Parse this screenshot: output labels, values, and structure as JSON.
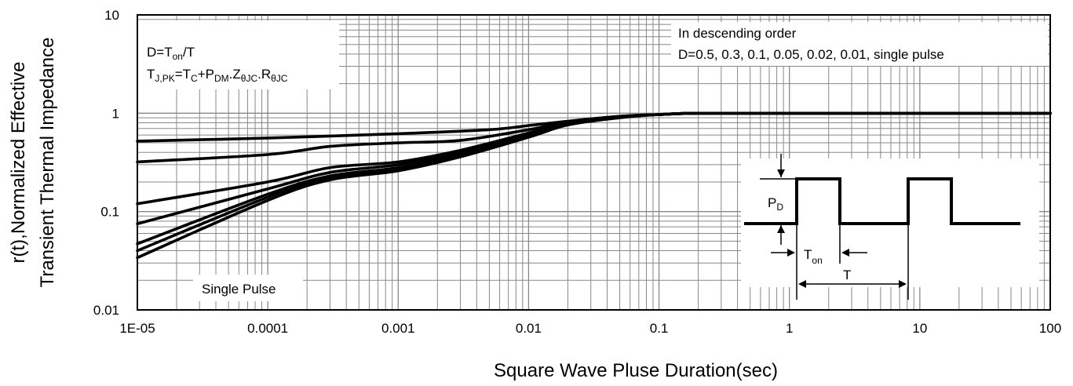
{
  "chart_data": {
    "type": "line",
    "title": "",
    "xlabel": "Square Wave Pluse Duration(sec)",
    "ylabel_line1": "r(t),Normalized Effective",
    "ylabel_line2": "Transient Thermal Impedance",
    "x_scale": "log",
    "y_scale": "log",
    "xlim": [
      1e-05,
      100
    ],
    "ylim": [
      0.01,
      10
    ],
    "grid": true,
    "x_ticks": [
      "1E-05",
      "0.0001",
      "0.001",
      "0.01",
      "0.1",
      "1",
      "10",
      "100"
    ],
    "y_ticks": [
      "0.01",
      "0.1",
      "1",
      "10"
    ],
    "series": [
      {
        "x": [
          1e-05,
          0.0001,
          0.001,
          0.005,
          0.01,
          0.02,
          0.05,
          0.1,
          0.2,
          1,
          10,
          100
        ],
        "values": [
          0.52,
          0.56,
          0.62,
          0.68,
          0.75,
          0.83,
          0.93,
          0.97,
          1.0,
          1.0,
          1.0,
          1.0
        ]
      },
      {
        "x": [
          1e-05,
          0.0001,
          0.0003,
          0.001,
          0.003,
          0.01,
          0.02,
          0.05,
          0.1,
          0.2,
          1,
          10,
          100
        ],
        "values": [
          0.32,
          0.38,
          0.46,
          0.5,
          0.53,
          0.68,
          0.82,
          0.93,
          0.97,
          1.0,
          1.0,
          1.0,
          1.0
        ]
      },
      {
        "x": [
          1e-05,
          0.0001,
          0.0003,
          0.001,
          0.003,
          0.01,
          0.02,
          0.05,
          0.1,
          0.2,
          1,
          10,
          100
        ],
        "values": [
          0.12,
          0.2,
          0.28,
          0.32,
          0.42,
          0.63,
          0.8,
          0.92,
          0.97,
          1.0,
          1.0,
          1.0,
          1.0
        ]
      },
      {
        "x": [
          1e-05,
          0.0001,
          0.0003,
          0.001,
          0.003,
          0.01,
          0.02,
          0.05,
          0.1,
          0.2,
          1,
          10,
          100
        ],
        "values": [
          0.075,
          0.17,
          0.25,
          0.3,
          0.4,
          0.62,
          0.79,
          0.92,
          0.97,
          1.0,
          1.0,
          1.0,
          1.0
        ]
      },
      {
        "x": [
          1e-05,
          0.0001,
          0.0003,
          0.001,
          0.003,
          0.01,
          0.02,
          0.05,
          0.1,
          0.2,
          1,
          10,
          100
        ],
        "values": [
          0.047,
          0.15,
          0.23,
          0.28,
          0.38,
          0.6,
          0.78,
          0.91,
          0.97,
          1.0,
          1.0,
          1.0,
          1.0
        ]
      },
      {
        "x": [
          1e-05,
          0.0001,
          0.0003,
          0.001,
          0.003,
          0.01,
          0.02,
          0.05,
          0.1,
          0.2,
          1,
          10,
          100
        ],
        "values": [
          0.04,
          0.14,
          0.22,
          0.27,
          0.37,
          0.58,
          0.77,
          0.91,
          0.97,
          1.0,
          1.0,
          1.0,
          1.0
        ]
      },
      {
        "x": [
          1e-05,
          0.0001,
          0.0003,
          0.001,
          0.003,
          0.01,
          0.02,
          0.05,
          0.1,
          0.2,
          1,
          10,
          100
        ],
        "values": [
          0.034,
          0.13,
          0.21,
          0.26,
          0.36,
          0.57,
          0.76,
          0.9,
          0.97,
          1.0,
          1.0,
          1.0,
          1.0
        ]
      }
    ],
    "annotations": {
      "duty_formula": "D=T",
      "duty_sub": "on",
      "duty_tail": "/T",
      "tj_a": "T",
      "tj_a_sub": "J,PK",
      "tj_b": "=T",
      "tj_b_sub": "C",
      "tj_c": "+P",
      "tj_c_sub": "DM",
      "tj_d": ".Z",
      "tj_d_sub": "θJC",
      "tj_e": ".R",
      "tj_e_sub": "θJC",
      "order_line1": "In descending order",
      "order_line2": "D=0.5, 0.3, 0.1, 0.05, 0.02, 0.01, single pulse",
      "single_pulse": "Single Pulse",
      "pd": "P",
      "pd_sub": "D",
      "ton": "T",
      "ton_sub": "on",
      "period": "T"
    },
    "line_color": "#000000",
    "grid_color": "#888888"
  }
}
